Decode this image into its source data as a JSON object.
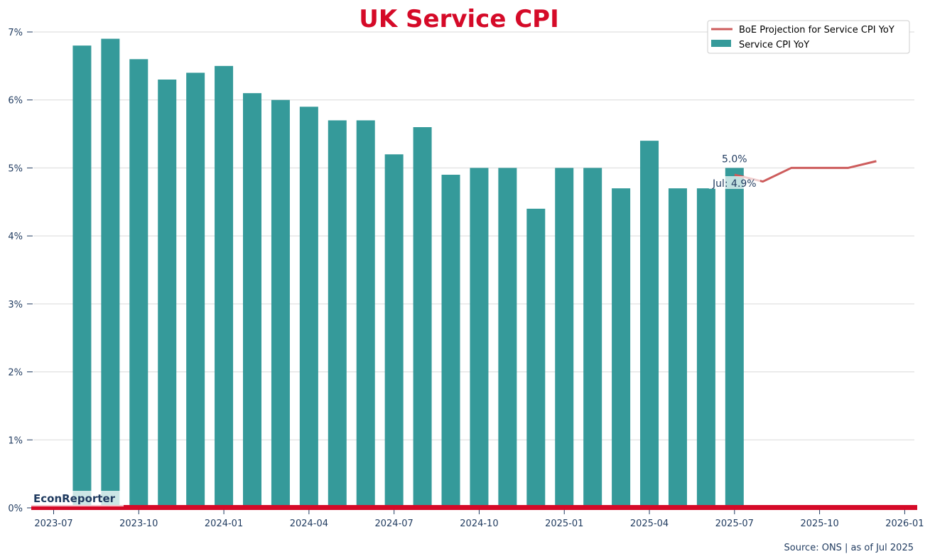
{
  "chart_data": {
    "type": "bar",
    "title": "UK Service CPI",
    "xlabel": "",
    "ylabel": "",
    "ylim": [
      0,
      7
    ],
    "y_ticks": [
      "0%",
      "1%",
      "2%",
      "3%",
      "4%",
      "5%",
      "6%",
      "7%"
    ],
    "x_ticks": [
      "2023-07",
      "2023-10",
      "2024-01",
      "2024-04",
      "2024-07",
      "2024-10",
      "2025-01",
      "2025-04",
      "2025-07",
      "2025-10",
      "2026-01"
    ],
    "grid": "horizontal",
    "legend_position": "top-right",
    "series": [
      {
        "name": "Service CPI YoY",
        "type": "bar",
        "color": "#359a9a",
        "x": [
          "2023-08",
          "2023-09",
          "2023-10",
          "2023-11",
          "2023-12",
          "2024-01",
          "2024-02",
          "2024-03",
          "2024-04",
          "2024-05",
          "2024-06",
          "2024-07",
          "2024-08",
          "2024-09",
          "2024-10",
          "2024-11",
          "2024-12",
          "2025-01",
          "2025-02",
          "2025-03",
          "2025-04",
          "2025-05",
          "2025-06",
          "2025-07"
        ],
        "values": [
          6.8,
          6.9,
          6.6,
          6.3,
          6.4,
          6.5,
          6.1,
          6.0,
          5.9,
          5.7,
          5.7,
          5.2,
          5.6,
          4.9,
          5.0,
          5.0,
          4.4,
          5.0,
          5.0,
          4.7,
          5.4,
          4.7,
          4.7,
          5.0
        ]
      },
      {
        "name": "BoE Projection for Service CPI YoY",
        "type": "line",
        "color": "#cd5c5c",
        "x": [
          "2025-07",
          "2025-08",
          "2025-09",
          "2025-10",
          "2025-11",
          "2025-12"
        ],
        "values": [
          4.9,
          4.8,
          5.0,
          5.0,
          5.0,
          5.1
        ]
      }
    ],
    "annotations": [
      {
        "text": "5.0%",
        "x": "2025-07",
        "y": 5.0,
        "color": "#1a7a78"
      },
      {
        "text": "Jul: 4.9%",
        "x": "2025-07",
        "y": 4.9,
        "color": "#cd5c5c"
      }
    ],
    "source": "Source: ONS | as of Jul 2025",
    "brand": "EconReporter"
  }
}
